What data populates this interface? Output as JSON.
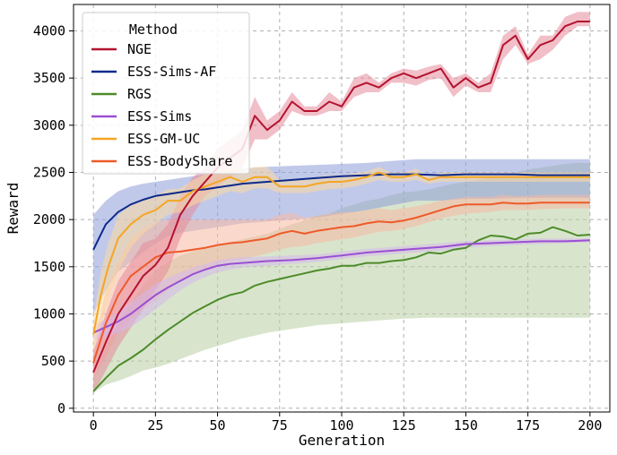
{
  "chart_data": {
    "type": "line",
    "xlabel": "Generation",
    "ylabel": "Reward",
    "xlim": [
      -8,
      208
    ],
    "ylim": [
      -40,
      4280
    ],
    "xticks": [
      0,
      25,
      50,
      75,
      100,
      125,
      150,
      175,
      200
    ],
    "yticks": [
      0,
      500,
      1000,
      1500,
      2000,
      2500,
      3000,
      3500,
      4000
    ],
    "grid": true,
    "grid_style": "dashed",
    "legend": {
      "title": "Method",
      "placement": "top-left"
    },
    "series": [
      {
        "name": "NGE",
        "color": "#b5122f",
        "band_color": "#e58a9a",
        "x": [
          0,
          5,
          10,
          15,
          20,
          25,
          30,
          35,
          40,
          45,
          50,
          55,
          60,
          65,
          70,
          75,
          80,
          85,
          90,
          95,
          100,
          105,
          110,
          115,
          120,
          125,
          130,
          135,
          140,
          145,
          150,
          155,
          160,
          165,
          170,
          175,
          180,
          185,
          190,
          195,
          200
        ],
        "values": [
          380,
          700,
          1000,
          1200,
          1400,
          1520,
          1700,
          2050,
          2250,
          2400,
          2550,
          2650,
          2750,
          3100,
          2950,
          3050,
          3250,
          3150,
          3150,
          3250,
          3200,
          3400,
          3450,
          3400,
          3500,
          3550,
          3500,
          3550,
          3600,
          3400,
          3500,
          3400,
          3450,
          3850,
          3950,
          3700,
          3850,
          3900,
          4050,
          4100,
          4100
        ],
        "lower": [
          150,
          400,
          650,
          850,
          1050,
          1250,
          1450,
          1800,
          2050,
          2250,
          2350,
          2450,
          2550,
          2850,
          2850,
          2950,
          3150,
          3100,
          3100,
          3150,
          3150,
          3300,
          3350,
          3350,
          3450,
          3450,
          3420,
          3480,
          3500,
          3300,
          3420,
          3350,
          3350,
          3700,
          3850,
          3650,
          3700,
          3800,
          3950,
          4050,
          4050
        ],
        "upper": [
          600,
          1000,
          1350,
          1550,
          1750,
          1800,
          1950,
          2250,
          2450,
          2550,
          2750,
          2850,
          2950,
          3300,
          3050,
          3150,
          3350,
          3200,
          3200,
          3350,
          3250,
          3500,
          3550,
          3450,
          3550,
          3600,
          3580,
          3620,
          3650,
          3500,
          3550,
          3450,
          3550,
          3950,
          4050,
          3750,
          3950,
          3950,
          4150,
          4200,
          4200
        ]
      },
      {
        "name": "ESS-Sims-AF",
        "color": "#0d2a8a",
        "band_color": "#8e9cd8",
        "x": [
          0,
          5,
          10,
          15,
          20,
          25,
          30,
          35,
          40,
          45,
          50,
          55,
          60,
          70,
          80,
          90,
          100,
          110,
          120,
          130,
          140,
          150,
          160,
          170,
          180,
          190,
          200
        ],
        "values": [
          1680,
          1950,
          2080,
          2160,
          2210,
          2250,
          2270,
          2290,
          2310,
          2320,
          2340,
          2360,
          2380,
          2400,
          2420,
          2440,
          2460,
          2470,
          2480,
          2480,
          2470,
          2480,
          2480,
          2480,
          2470,
          2470,
          2470
        ],
        "lower": [
          1000,
          1250,
          1450,
          1550,
          1650,
          1750,
          1820,
          1860,
          1880,
          1900,
          1920,
          1940,
          1960,
          1980,
          2000,
          2020,
          2060,
          2100,
          2150,
          2200,
          2200,
          2220,
          2220,
          2230,
          2230,
          2230,
          2230
        ],
        "upper": [
          2050,
          2200,
          2300,
          2350,
          2380,
          2400,
          2420,
          2440,
          2460,
          2480,
          2500,
          2520,
          2540,
          2560,
          2570,
          2580,
          2590,
          2600,
          2620,
          2640,
          2640,
          2640,
          2640,
          2640,
          2640,
          2640,
          2640
        ]
      },
      {
        "name": "RGS",
        "color": "#4d8b2a",
        "band_color": "#b8cfa3",
        "x": [
          0,
          5,
          10,
          15,
          20,
          25,
          30,
          35,
          40,
          45,
          50,
          55,
          60,
          65,
          70,
          75,
          80,
          85,
          90,
          95,
          100,
          105,
          110,
          115,
          120,
          125,
          130,
          135,
          140,
          145,
          150,
          155,
          160,
          165,
          170,
          175,
          180,
          185,
          190,
          195,
          200
        ],
        "values": [
          180,
          320,
          450,
          530,
          620,
          730,
          830,
          920,
          1010,
          1080,
          1150,
          1200,
          1230,
          1300,
          1340,
          1370,
          1400,
          1430,
          1460,
          1480,
          1510,
          1510,
          1540,
          1540,
          1560,
          1570,
          1600,
          1650,
          1640,
          1680,
          1700,
          1780,
          1830,
          1820,
          1790,
          1850,
          1860,
          1920,
          1880,
          1830,
          1840
        ],
        "lower": [
          160,
          250,
          290,
          340,
          400,
          430,
          470,
          520,
          570,
          620,
          660,
          700,
          740,
          770,
          800,
          820,
          840,
          860,
          880,
          890,
          900,
          910,
          920,
          930,
          940,
          950,
          955,
          960,
          960,
          960,
          960,
          960,
          960,
          960,
          960,
          960,
          960,
          960,
          960,
          960,
          960
        ],
        "upper": [
          300,
          650,
          900,
          1100,
          1300,
          1450,
          1550,
          1620,
          1660,
          1690,
          1730,
          1760,
          1790,
          1820,
          1850,
          1900,
          1950,
          1990,
          2040,
          2060,
          2120,
          2160,
          2200,
          2220,
          2260,
          2290,
          2300,
          2320,
          2350,
          2380,
          2400,
          2420,
          2450,
          2460,
          2500,
          2530,
          2550,
          2570,
          2590,
          2600,
          2600
        ]
      },
      {
        "name": "ESS-Sims",
        "color": "#9b4fd1",
        "band_color": "#d6b8ec",
        "x": [
          0,
          5,
          10,
          15,
          20,
          25,
          30,
          35,
          40,
          45,
          50,
          55,
          60,
          70,
          80,
          90,
          100,
          110,
          120,
          130,
          140,
          150,
          160,
          170,
          180,
          190,
          200
        ],
        "values": [
          800,
          860,
          920,
          1000,
          1100,
          1200,
          1280,
          1350,
          1420,
          1470,
          1510,
          1530,
          1540,
          1560,
          1570,
          1590,
          1620,
          1650,
          1670,
          1690,
          1710,
          1740,
          1750,
          1760,
          1770,
          1770,
          1780
        ],
        "lower": [
          720,
          760,
          800,
          860,
          950,
          1050,
          1150,
          1250,
          1330,
          1390,
          1440,
          1470,
          1490,
          1510,
          1530,
          1550,
          1580,
          1610,
          1630,
          1650,
          1670,
          1700,
          1720,
          1730,
          1740,
          1750,
          1760
        ],
        "upper": [
          880,
          940,
          1020,
          1120,
          1220,
          1320,
          1380,
          1440,
          1490,
          1530,
          1570,
          1590,
          1600,
          1610,
          1620,
          1630,
          1660,
          1690,
          1710,
          1730,
          1750,
          1770,
          1780,
          1790,
          1800,
          1800,
          1800
        ]
      },
      {
        "name": "ESS-GM-UC",
        "color": "#f5a623",
        "band_color": "#fbd8a0",
        "x": [
          0,
          3,
          6,
          10,
          15,
          20,
          25,
          30,
          35,
          40,
          45,
          50,
          55,
          60,
          65,
          70,
          75,
          80,
          85,
          90,
          95,
          100,
          105,
          110,
          115,
          120,
          125,
          130,
          135,
          140,
          150,
          160,
          170,
          180,
          190,
          200
        ],
        "values": [
          780,
          1200,
          1500,
          1800,
          1950,
          2050,
          2100,
          2200,
          2200,
          2300,
          2350,
          2400,
          2450,
          2400,
          2450,
          2450,
          2350,
          2350,
          2350,
          2380,
          2400,
          2400,
          2420,
          2450,
          2500,
          2450,
          2450,
          2480,
          2420,
          2450,
          2450,
          2450,
          2450,
          2450,
          2450,
          2450
        ],
        "lower": [
          600,
          900,
          1150,
          1450,
          1700,
          1850,
          1950,
          2050,
          2080,
          2150,
          2200,
          2250,
          2300,
          2280,
          2330,
          2330,
          2280,
          2280,
          2280,
          2300,
          2320,
          2330,
          2350,
          2380,
          2420,
          2400,
          2400,
          2420,
          2380,
          2400,
          2400,
          2400,
          2400,
          2400,
          2400,
          2400
        ],
        "upper": [
          950,
          1450,
          1750,
          2050,
          2150,
          2200,
          2250,
          2320,
          2330,
          2420,
          2480,
          2520,
          2560,
          2520,
          2560,
          2560,
          2420,
          2420,
          2420,
          2450,
          2470,
          2470,
          2490,
          2510,
          2560,
          2500,
          2500,
          2540,
          2460,
          2500,
          2500,
          2500,
          2500,
          2500,
          2500,
          2500
        ]
      },
      {
        "name": "ESS-BodyShare",
        "color": "#ee5a2a",
        "band_color": "#f7b8a3",
        "x": [
          0,
          5,
          10,
          15,
          20,
          25,
          30,
          35,
          40,
          45,
          50,
          55,
          60,
          65,
          70,
          75,
          80,
          85,
          90,
          95,
          100,
          105,
          110,
          115,
          120,
          125,
          130,
          135,
          140,
          145,
          150,
          155,
          160,
          165,
          170,
          175,
          180,
          190,
          200
        ],
        "values": [
          480,
          900,
          1200,
          1400,
          1500,
          1600,
          1650,
          1660,
          1680,
          1700,
          1730,
          1750,
          1760,
          1780,
          1800,
          1850,
          1880,
          1850,
          1880,
          1900,
          1920,
          1930,
          1960,
          1980,
          1970,
          1990,
          2020,
          2060,
          2100,
          2140,
          2160,
          2160,
          2160,
          2180,
          2170,
          2170,
          2180,
          2180,
          2180
        ],
        "lower": [
          300,
          550,
          800,
          950,
          1050,
          1150,
          1250,
          1350,
          1420,
          1480,
          1530,
          1560,
          1580,
          1610,
          1640,
          1680,
          1710,
          1720,
          1750,
          1770,
          1790,
          1810,
          1840,
          1870,
          1880,
          1900,
          1930,
          1970,
          2010,
          2040,
          2060,
          2070,
          2080,
          2100,
          2100,
          2100,
          2110,
          2120,
          2120
        ],
        "upper": [
          650,
          1250,
          1550,
          1800,
          1900,
          1970,
          2000,
          2000,
          2000,
          2000,
          2000,
          2000,
          2000,
          2000,
          2000,
          2050,
          2070,
          2020,
          2040,
          2060,
          2080,
          2080,
          2100,
          2120,
          2100,
          2120,
          2140,
          2170,
          2200,
          2220,
          2240,
          2240,
          2240,
          2260,
          2250,
          2250,
          2260,
          2260,
          2260
        ]
      }
    ]
  }
}
